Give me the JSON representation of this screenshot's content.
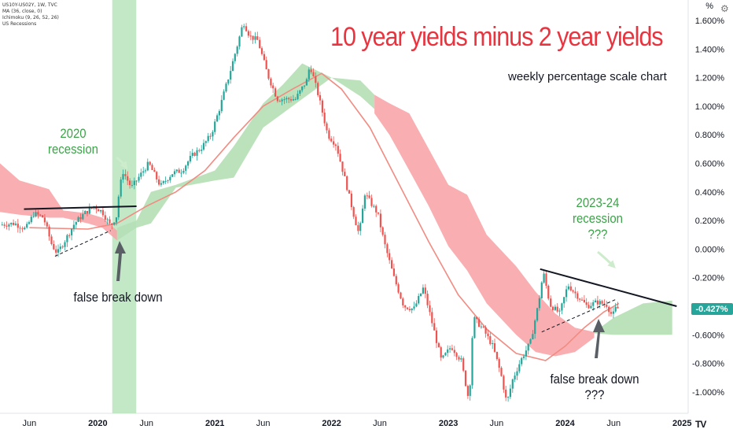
{
  "header": {
    "symbol_line": "US10Y-US02Y, 1W, TVC",
    "ma_line": "MA (36, close, 0)",
    "ichimoku_line": "Ichimoku (9, 26, 52, 26)",
    "recessions_line": "US Recessions"
  },
  "axis_unit_label": "%",
  "price_badge": "-0.427%",
  "annotations": {
    "title": "10 year yields minus 2 year yields",
    "subtitle": "weekly percentage scale chart",
    "recession_2020_line1": "2020",
    "recession_2020_line2": "recession",
    "false_break_1": "false break down",
    "recession_2023_line1": "2023-24",
    "recession_2023_line2": "recession",
    "recession_2023_line3": "???",
    "false_break_2_line1": "false break down",
    "false_break_2_line2": "???"
  },
  "colors": {
    "up_candle": "#26a69a",
    "down_candle": "#ef5350",
    "ma_line": "#f28b82",
    "cloud_bear": "#f8a5a9",
    "cloud_bull": "#b5dfb5",
    "recession_band": "#b9e4bc",
    "title_red": "#e8343f",
    "annotation_green": "#3ea24a",
    "price_badge": "#26a69a"
  },
  "chart_data": {
    "type": "candlestick",
    "timeframe": "1W",
    "y_unit": "%",
    "ylim": [
      -1.1,
      1.7
    ],
    "y_ticks": [
      "1.600%",
      "1.400%",
      "1.200%",
      "1.000%",
      "0.800%",
      "0.600%",
      "0.400%",
      "0.200%",
      "0.000%",
      "-0.200%",
      "-0.400%",
      "-0.600%",
      "-0.800%",
      "-1.000%"
    ],
    "y_tick_values": [
      1.6,
      1.4,
      1.2,
      1.0,
      0.8,
      0.6,
      0.4,
      0.2,
      0.0,
      -0.2,
      -0.4,
      -0.6,
      -0.8,
      -1.0
    ],
    "x_range": [
      "2019-03-01",
      "2025-01-20"
    ],
    "x_ticks": [
      {
        "label": "Jun",
        "date": "2019-06-01"
      },
      {
        "label": "2020",
        "date": "2020-01-01"
      },
      {
        "label": "Jun",
        "date": "2020-06-01"
      },
      {
        "label": "2021",
        "date": "2021-01-01"
      },
      {
        "label": "Jun",
        "date": "2021-06-01"
      },
      {
        "label": "2022",
        "date": "2022-01-01"
      },
      {
        "label": "Jun",
        "date": "2022-06-01"
      },
      {
        "label": "2023",
        "date": "2023-01-01"
      },
      {
        "label": "Jun",
        "date": "2023-06-01"
      },
      {
        "label": "2024",
        "date": "2024-01-01"
      },
      {
        "label": "Jun",
        "date": "2024-06-01"
      },
      {
        "label": "2025",
        "date": "2025-01-01"
      }
    ],
    "last_value": -0.427,
    "recession_shading": {
      "from": "2020-02-15",
      "to": "2020-04-30"
    },
    "series": [
      {
        "name": "US10Y-US02Y",
        "kind": "close",
        "points": [
          [
            "2019-03-01",
            0.17
          ],
          [
            "2019-04-15",
            0.18
          ],
          [
            "2019-05-20",
            0.14
          ],
          [
            "2019-06-15",
            0.25
          ],
          [
            "2019-07-15",
            0.22
          ],
          [
            "2019-08-10",
            0.03
          ],
          [
            "2019-08-27",
            -0.03
          ],
          [
            "2019-09-20",
            0.06
          ],
          [
            "2019-10-20",
            0.18
          ],
          [
            "2019-11-20",
            0.25
          ],
          [
            "2019-12-20",
            0.3
          ],
          [
            "2020-01-15",
            0.26
          ],
          [
            "2020-02-10",
            0.16
          ],
          [
            "2020-02-28",
            0.23
          ],
          [
            "2020-03-09",
            0.43
          ],
          [
            "2020-03-20",
            0.54
          ],
          [
            "2020-04-15",
            0.43
          ],
          [
            "2020-05-10",
            0.51
          ],
          [
            "2020-06-08",
            0.6
          ],
          [
            "2020-07-15",
            0.44
          ],
          [
            "2020-08-20",
            0.53
          ],
          [
            "2020-09-20",
            0.55
          ],
          [
            "2020-10-20",
            0.65
          ],
          [
            "2020-11-20",
            0.71
          ],
          [
            "2020-12-20",
            0.8
          ],
          [
            "2021-01-15",
            0.98
          ],
          [
            "2021-02-15",
            1.22
          ],
          [
            "2021-03-15",
            1.45
          ],
          [
            "2021-03-31",
            1.59
          ],
          [
            "2021-04-20",
            1.49
          ],
          [
            "2021-05-15",
            1.46
          ],
          [
            "2021-06-15",
            1.22
          ],
          [
            "2021-07-15",
            1.05
          ],
          [
            "2021-08-15",
            1.05
          ],
          [
            "2021-09-10",
            1.05
          ],
          [
            "2021-10-15",
            1.18
          ],
          [
            "2021-10-25",
            1.29
          ],
          [
            "2021-11-20",
            1.08
          ],
          [
            "2021-12-20",
            0.8
          ],
          [
            "2022-01-15",
            0.73
          ],
          [
            "2022-02-15",
            0.46
          ],
          [
            "2022-03-10",
            0.25
          ],
          [
            "2022-03-28",
            0.1
          ],
          [
            "2022-04-15",
            0.39
          ],
          [
            "2022-05-10",
            0.3
          ],
          [
            "2022-05-25",
            0.25
          ],
          [
            "2022-06-14",
            0.05
          ],
          [
            "2022-07-15",
            -0.2
          ],
          [
            "2022-08-15",
            -0.4
          ],
          [
            "2022-09-15",
            -0.42
          ],
          [
            "2022-10-15",
            -0.27
          ],
          [
            "2022-11-15",
            -0.55
          ],
          [
            "2022-12-10",
            -0.78
          ],
          [
            "2023-01-10",
            -0.68
          ],
          [
            "2023-02-10",
            -0.78
          ],
          [
            "2023-03-07",
            -1.07
          ],
          [
            "2023-03-20",
            -0.48
          ],
          [
            "2023-04-20",
            -0.56
          ],
          [
            "2023-05-20",
            -0.68
          ],
          [
            "2023-06-15",
            -0.88
          ],
          [
            "2023-07-03",
            -1.08
          ],
          [
            "2023-07-20",
            -0.92
          ],
          [
            "2023-08-15",
            -0.78
          ],
          [
            "2023-09-15",
            -0.65
          ],
          [
            "2023-10-10",
            -0.38
          ],
          [
            "2023-10-25",
            -0.16
          ],
          [
            "2023-11-15",
            -0.39
          ],
          [
            "2023-12-15",
            -0.45
          ],
          [
            "2024-01-10",
            -0.25
          ],
          [
            "2024-02-10",
            -0.33
          ],
          [
            "2024-03-10",
            -0.4
          ],
          [
            "2024-04-10",
            -0.37
          ],
          [
            "2024-05-10",
            -0.39
          ],
          [
            "2024-05-28",
            -0.47
          ],
          [
            "2024-06-10",
            -0.4
          ],
          [
            "2024-06-17",
            -0.427
          ]
        ]
      },
      {
        "name": "MA (36, close, 0)",
        "points": [
          [
            "2019-06-01",
            0.15
          ],
          [
            "2019-12-01",
            0.14
          ],
          [
            "2020-03-01",
            0.18
          ],
          [
            "2020-06-01",
            0.3
          ],
          [
            "2020-09-01",
            0.4
          ],
          [
            "2020-12-01",
            0.55
          ],
          [
            "2021-03-01",
            0.78
          ],
          [
            "2021-06-01",
            1.0
          ],
          [
            "2021-09-01",
            1.12
          ],
          [
            "2021-12-01",
            1.23
          ],
          [
            "2022-02-01",
            1.12
          ],
          [
            "2022-05-01",
            0.85
          ],
          [
            "2022-08-01",
            0.45
          ],
          [
            "2022-11-01",
            0.05
          ],
          [
            "2023-02-01",
            -0.32
          ],
          [
            "2023-05-01",
            -0.56
          ],
          [
            "2023-08-01",
            -0.73
          ],
          [
            "2023-11-01",
            -0.78
          ],
          [
            "2024-01-01",
            -0.68
          ],
          [
            "2024-03-01",
            -0.55
          ],
          [
            "2024-05-01",
            -0.44
          ],
          [
            "2024-06-17",
            -0.38
          ]
        ]
      },
      {
        "name": "Ichimoku cloud (bearish)",
        "kind": "band",
        "segments": [
          [
            [
              "2019-03-01",
              0.6,
              0.26
            ],
            [
              "2019-05-01",
              0.48,
              0.24
            ],
            [
              "2019-08-01",
              0.42,
              0.22
            ],
            [
              "2019-09-15",
              0.27,
              0.22
            ],
            [
              "2019-12-01",
              0.25,
              0.18
            ],
            [
              "2020-01-15",
              0.22,
              0.15
            ],
            [
              "2020-03-01",
              0.13,
              0.06
            ]
          ],
          [
            [
              "2022-05-15",
              1.08,
              0.95
            ],
            [
              "2022-07-01",
              1.02,
              0.8
            ],
            [
              "2022-09-01",
              0.95,
              0.55
            ],
            [
              "2022-11-01",
              0.7,
              0.3
            ],
            [
              "2023-01-01",
              0.45,
              0.02
            ],
            [
              "2023-03-01",
              0.38,
              -0.15
            ],
            [
              "2023-05-01",
              0.1,
              -0.38
            ],
            [
              "2023-08-01",
              -0.12,
              -0.6
            ],
            [
              "2023-10-01",
              -0.3,
              -0.72
            ],
            [
              "2023-12-01",
              -0.45,
              -0.75
            ],
            [
              "2024-02-01",
              -0.55,
              -0.72
            ],
            [
              "2024-04-01",
              -0.58,
              -0.62
            ]
          ]
        ]
      },
      {
        "name": "Ichimoku cloud (bullish)",
        "kind": "band",
        "segments": [
          [
            [
              "2020-03-01",
              0.15,
              0.06
            ],
            [
              "2020-05-01",
              0.2,
              0.15
            ],
            [
              "2020-06-15",
              0.4,
              0.18
            ],
            [
              "2020-09-01",
              0.43,
              0.45
            ],
            [
              "2021-01-01",
              0.55,
              0.48
            ],
            [
              "2021-03-01",
              0.72,
              0.5
            ],
            [
              "2021-06-01",
              1.02,
              0.85
            ],
            [
              "2021-08-01",
              1.15,
              0.95
            ],
            [
              "2021-10-01",
              1.3,
              1.05
            ],
            [
              "2022-01-01",
              1.2,
              1.2
            ],
            [
              "2022-04-01",
              1.18,
              1.07
            ],
            [
              "2022-05-15",
              1.08,
              0.98
            ]
          ],
          [
            [
              "2024-04-01",
              -0.58,
              -0.59
            ],
            [
              "2024-06-01",
              -0.48,
              -0.6
            ],
            [
              "2024-09-01",
              -0.38,
              -0.6
            ],
            [
              "2024-12-01",
              -0.36,
              -0.6
            ]
          ]
        ]
      }
    ],
    "trendlines": [
      {
        "style": "solid",
        "from": [
          "2019-05-15",
          0.28
        ],
        "to": [
          "2020-05-01",
          0.3
        ]
      },
      {
        "style": "dashed",
        "from": [
          "2019-08-20",
          -0.05
        ],
        "to": [
          "2020-02-10",
          0.13
        ]
      },
      {
        "style": "solid",
        "from": [
          "2023-10-15",
          -0.14
        ],
        "to": [
          "2024-12-15",
          -0.4
        ]
      },
      {
        "style": "dashed",
        "from": [
          "2023-10-20",
          -0.58
        ],
        "to": [
          "2024-06-10",
          -0.35
        ]
      }
    ]
  }
}
